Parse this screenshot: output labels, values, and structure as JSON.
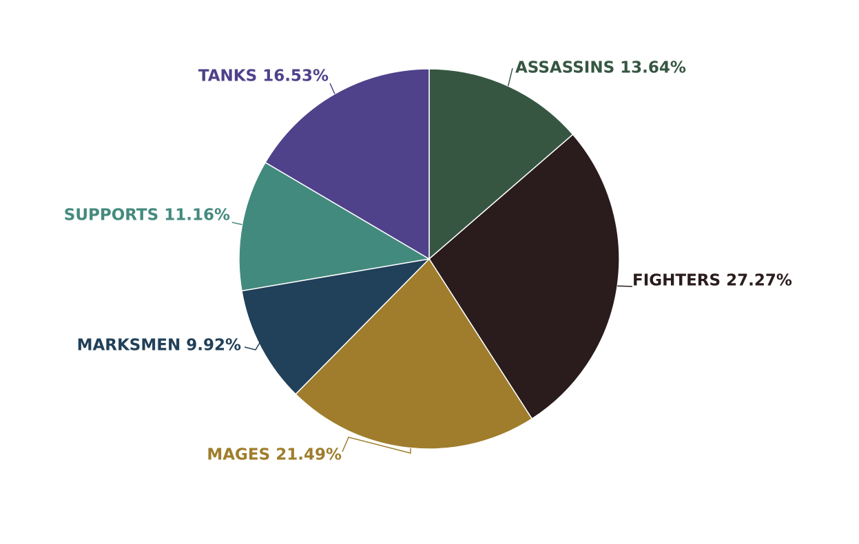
{
  "chart_data": {
    "type": "pie",
    "slices": [
      {
        "name": "ASSASSINS",
        "value": 13.64,
        "label": "ASSASSINS 13.64%",
        "color": "#365642"
      },
      {
        "name": "FIGHTERS",
        "value": 27.27,
        "label": "FIGHTERS 27.27%",
        "color": "#2a1c1c"
      },
      {
        "name": "MAGES",
        "value": 21.49,
        "label": "MAGES 21.49%",
        "color": "#9f7d2c"
      },
      {
        "name": "MARKSMEN",
        "value": 9.92,
        "label": "MARKSMEN 9.92%",
        "color": "#214059"
      },
      {
        "name": "SUPPORTS",
        "value": 11.16,
        "label": "SUPPORTS 11.16%",
        "color": "#438a7e"
      },
      {
        "name": "TANKS",
        "value": 16.53,
        "label": "TANKS 16.53%",
        "color": "#4f418a"
      }
    ],
    "start_angle": "12 o'clock",
    "direction": "clockwise",
    "legend": "none",
    "labels": "outside, with leader lines"
  }
}
